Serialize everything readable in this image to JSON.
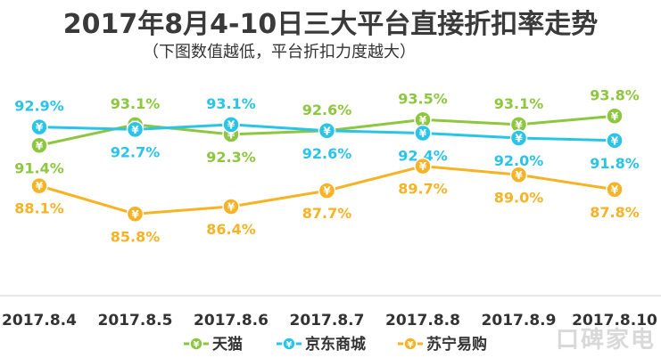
{
  "chart_data": {
    "type": "line",
    "title": "2017年8月4-10日三大平台直接折扣率走势",
    "subtitle": "（下图数值越低，平台折扣力度越大）",
    "categories": [
      "2017.8.4",
      "2017.8.5",
      "2017.8.6",
      "2017.8.7",
      "2017.8.8",
      "2017.8.9",
      "2017.8.10"
    ],
    "ylim": [
      84,
      96
    ],
    "grid": false,
    "legend": "bottom",
    "marker_glyph": "¥",
    "series": [
      {
        "name": "天猫",
        "color": "#8dc63f",
        "values": [
          91.4,
          93.1,
          92.3,
          92.6,
          93.5,
          93.1,
          93.8
        ],
        "labels": [
          "91.4%",
          "93.1%",
          "92.3%",
          "92.6%",
          "93.5%",
          "93.1%",
          "93.8%"
        ],
        "label_pos": [
          "below",
          "above",
          "below",
          "above",
          "above",
          "above",
          "above"
        ]
      },
      {
        "name": "京东商城",
        "color": "#29c4e8",
        "values": [
          92.9,
          92.7,
          93.1,
          92.6,
          92.4,
          92.0,
          91.8
        ],
        "labels": [
          "92.9%",
          "92.7%",
          "93.1%",
          "92.6%",
          "92.4%",
          "92.0%",
          "91.8%"
        ],
        "label_pos": [
          "above",
          "below",
          "above",
          "below",
          "below",
          "below",
          "below"
        ]
      },
      {
        "name": "苏宁易购",
        "color": "#f5b325",
        "values": [
          88.1,
          85.8,
          86.4,
          87.7,
          89.7,
          89.0,
          87.8
        ],
        "labels": [
          "88.1%",
          "85.8%",
          "86.4%",
          "87.7%",
          "89.7%",
          "89.0%",
          "87.8%"
        ],
        "label_pos": [
          "below",
          "below",
          "below",
          "below",
          "below",
          "below",
          "below"
        ]
      }
    ]
  },
  "watermark": "口碑家电"
}
